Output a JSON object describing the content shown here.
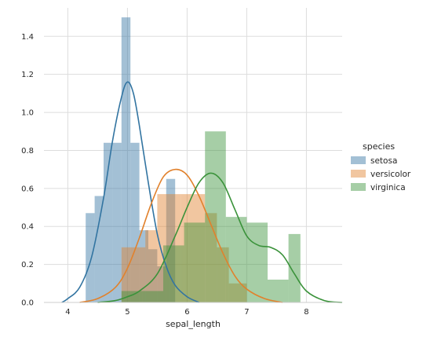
{
  "chart_data": {
    "type": "histogram-kde",
    "title": "",
    "xlabel": "sepal_length",
    "ylabel": "",
    "xlim": [
      3.6,
      8.6
    ],
    "ylim": [
      0,
      1.55
    ],
    "xticks": [
      4,
      5,
      6,
      7,
      8
    ],
    "yticks": [
      0.0,
      0.2,
      0.4,
      0.6,
      0.8,
      1.0,
      1.2,
      1.4
    ],
    "ytick_labels": [
      "0.0",
      "0.2",
      "0.4",
      "0.6",
      "0.8",
      "1.0",
      "1.2",
      "1.4"
    ],
    "grid": true,
    "legend": {
      "title": "species",
      "placement": "right",
      "entries": [
        "setosa",
        "versicolor",
        "virginica"
      ]
    },
    "colors": {
      "setosa": "#3274a1",
      "versicolor": "#e1812c",
      "virginica": "#3a923a",
      "grid": "#dddddd",
      "axis": "#cccccc"
    },
    "series": [
      {
        "name": "setosa",
        "hist": [
          {
            "x0": 4.3,
            "x1": 4.45,
            "y": 0.47
          },
          {
            "x0": 4.45,
            "x1": 4.6,
            "y": 0.56
          },
          {
            "x0": 4.6,
            "x1": 4.75,
            "y": 0.84
          },
          {
            "x0": 4.75,
            "x1": 4.9,
            "y": 0.84
          },
          {
            "x0": 4.9,
            "x1": 5.05,
            "y": 1.5
          },
          {
            "x0": 5.05,
            "x1": 5.2,
            "y": 0.84
          },
          {
            "x0": 5.2,
            "x1": 5.35,
            "y": 0.38
          },
          {
            "x0": 5.35,
            "x1": 5.5,
            "y": 0.28
          },
          {
            "x0": 5.5,
            "x1": 5.65,
            "y": 0.19
          },
          {
            "x0": 5.65,
            "x1": 5.8,
            "y": 0.65
          }
        ],
        "kde": [
          [
            3.9,
            0.0
          ],
          [
            4.0,
            0.02
          ],
          [
            4.2,
            0.08
          ],
          [
            4.4,
            0.24
          ],
          [
            4.6,
            0.55
          ],
          [
            4.75,
            0.85
          ],
          [
            4.9,
            1.08
          ],
          [
            5.0,
            1.16
          ],
          [
            5.1,
            1.1
          ],
          [
            5.2,
            0.93
          ],
          [
            5.35,
            0.63
          ],
          [
            5.5,
            0.36
          ],
          [
            5.65,
            0.19
          ],
          [
            5.8,
            0.09
          ],
          [
            6.0,
            0.03
          ],
          [
            6.2,
            0.0
          ]
        ]
      },
      {
        "name": "versicolor",
        "hist": [
          {
            "x0": 4.9,
            "x1": 5.1,
            "y": 0.29
          },
          {
            "x0": 5.1,
            "x1": 5.3,
            "y": 0.29
          },
          {
            "x0": 5.3,
            "x1": 5.5,
            "y": 0.38
          },
          {
            "x0": 5.5,
            "x1": 5.7,
            "y": 0.57
          },
          {
            "x0": 5.7,
            "x1": 5.9,
            "y": 0.57
          },
          {
            "x0": 5.9,
            "x1": 6.1,
            "y": 0.57
          },
          {
            "x0": 6.1,
            "x1": 6.3,
            "y": 0.57
          },
          {
            "x0": 6.3,
            "x1": 6.5,
            "y": 0.47
          },
          {
            "x0": 6.5,
            "x1": 6.7,
            "y": 0.29
          },
          {
            "x0": 6.7,
            "x1": 7.0,
            "y": 0.1
          }
        ],
        "kde": [
          [
            4.2,
            0.0
          ],
          [
            4.5,
            0.02
          ],
          [
            4.8,
            0.08
          ],
          [
            5.0,
            0.18
          ],
          [
            5.2,
            0.34
          ],
          [
            5.4,
            0.52
          ],
          [
            5.6,
            0.66
          ],
          [
            5.8,
            0.7
          ],
          [
            6.0,
            0.67
          ],
          [
            6.2,
            0.56
          ],
          [
            6.4,
            0.41
          ],
          [
            6.6,
            0.26
          ],
          [
            6.8,
            0.14
          ],
          [
            7.0,
            0.07
          ],
          [
            7.3,
            0.02
          ],
          [
            7.6,
            0.0
          ]
        ]
      },
      {
        "name": "virginica",
        "hist": [
          {
            "x0": 4.9,
            "x1": 5.25,
            "y": 0.06
          },
          {
            "x0": 5.25,
            "x1": 5.6,
            "y": 0.06
          },
          {
            "x0": 5.6,
            "x1": 5.95,
            "y": 0.3
          },
          {
            "x0": 5.95,
            "x1": 6.3,
            "y": 0.42
          },
          {
            "x0": 6.3,
            "x1": 6.65,
            "y": 0.9
          },
          {
            "x0": 6.65,
            "x1": 7.0,
            "y": 0.45
          },
          {
            "x0": 7.0,
            "x1": 7.35,
            "y": 0.42
          },
          {
            "x0": 7.35,
            "x1": 7.7,
            "y": 0.12
          },
          {
            "x0": 7.7,
            "x1": 7.9,
            "y": 0.36
          }
        ],
        "kde": [
          [
            4.5,
            0.0
          ],
          [
            4.8,
            0.01
          ],
          [
            5.0,
            0.03
          ],
          [
            5.2,
            0.06
          ],
          [
            5.5,
            0.15
          ],
          [
            5.8,
            0.35
          ],
          [
            6.0,
            0.5
          ],
          [
            6.2,
            0.63
          ],
          [
            6.4,
            0.68
          ],
          [
            6.6,
            0.63
          ],
          [
            6.8,
            0.49
          ],
          [
            7.0,
            0.35
          ],
          [
            7.2,
            0.3
          ],
          [
            7.4,
            0.29
          ],
          [
            7.6,
            0.25
          ],
          [
            7.8,
            0.15
          ],
          [
            8.0,
            0.06
          ],
          [
            8.3,
            0.01
          ],
          [
            8.6,
            0.0
          ]
        ]
      }
    ]
  }
}
